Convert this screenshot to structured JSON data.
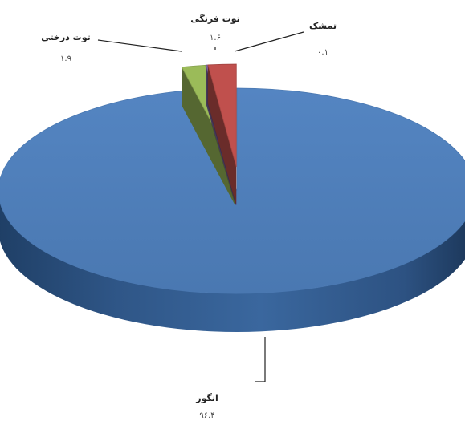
{
  "chart_data": {
    "type": "pie",
    "style": "3d-exploded",
    "slices": [
      {
        "label": "انگور",
        "value_text": "۹۶.۴",
        "value": 96.4,
        "color": "#4f81bd"
      },
      {
        "label": "توت فرنگی",
        "value_text": "۱.۶",
        "value": 1.6,
        "color": "#9bbb59"
      },
      {
        "label": "تمشک",
        "value_text": "۰.۱",
        "value": 0.1,
        "color": "#8064a2"
      },
      {
        "label": "توت درختی",
        "value_text": "۱.۹",
        "value": 1.9,
        "color": "#c0504d"
      }
    ]
  }
}
